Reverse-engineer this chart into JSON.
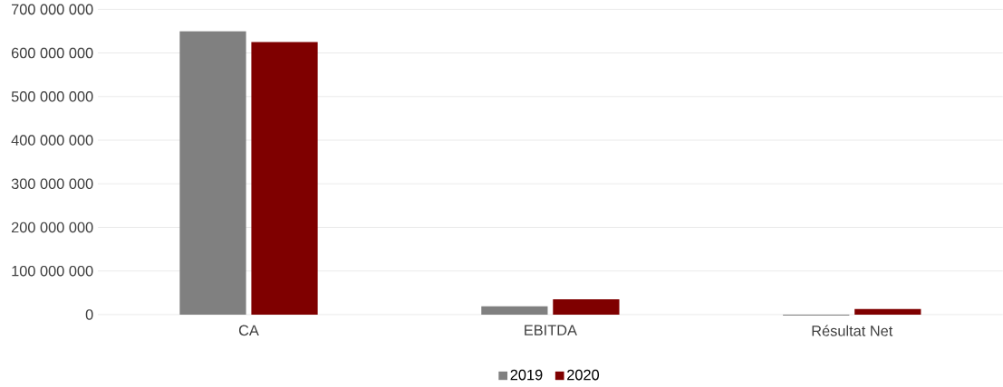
{
  "chart_data": {
    "type": "bar",
    "categories": [
      "CA",
      "EBITDA",
      "Résultat Net"
    ],
    "series": [
      {
        "name": "2019",
        "color": "#808080",
        "values": [
          650000000,
          19000000,
          -2000000
        ]
      },
      {
        "name": "2020",
        "color": "#7f0000",
        "values": [
          625000000,
          35000000,
          13000000
        ]
      }
    ],
    "ylim": [
      -2000000,
      700000000
    ],
    "yticks": [
      {
        "value": 0,
        "label": "0"
      },
      {
        "value": 100000000,
        "label": "100 000 000"
      },
      {
        "value": 200000000,
        "label": "200 000 000"
      },
      {
        "value": 300000000,
        "label": "300 000 000"
      },
      {
        "value": 400000000,
        "label": "400 000 000"
      },
      {
        "value": 500000000,
        "label": "500 000 000"
      },
      {
        "value": 600000000,
        "label": "600 000 000"
      },
      {
        "value": 700000000,
        "label": "700 000 000"
      }
    ],
    "grid": "y",
    "legend": "bottom"
  }
}
